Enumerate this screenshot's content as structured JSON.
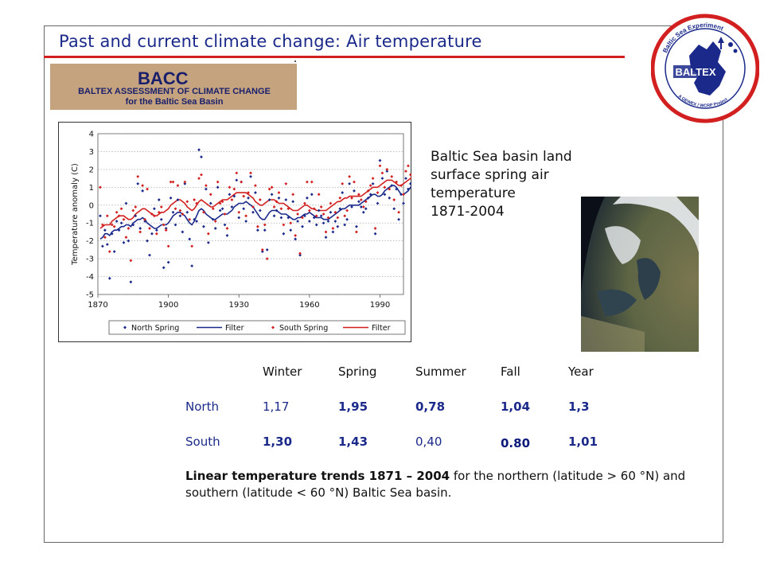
{
  "slide": {
    "title": "Past and current climate change: Air temperature",
    "description_lines": [
      "Baltic Sea basin land",
      "surface spring air",
      "temperature",
      "1871-2004"
    ]
  },
  "bacc_logo": {
    "name": "BACC",
    "line1": "BALTEX ASSESSMENT OF CLIMATE CHANGE",
    "line2": "for the Baltic Sea Basin"
  },
  "baltex_logo": {
    "ring_top": "Baltic Sea Experiment",
    "ring_bottom": "A GEWEX / WCRP Project",
    "center": "BALTEX",
    "sub": "GEWEX"
  },
  "colors": {
    "title": "#1b2a8a",
    "rule": "#d21f1f",
    "north_series": "#1b2a8a",
    "south_series": "#d21f1f",
    "bacc_bg": "#c4a37e"
  },
  "chart_data": {
    "type": "scatter",
    "ylabel": "Temperature anomaly (C)",
    "xlabel": "",
    "xlim": [
      1870,
      2000
    ],
    "ylim": [
      -5,
      4
    ],
    "x_ticks": [
      "1870",
      "1900",
      "1930",
      "1960",
      "1990"
    ],
    "y_ticks": [
      "-5",
      "-4",
      "-3",
      "-2",
      "-1",
      "0",
      "1",
      "2",
      "3",
      "4"
    ],
    "grid": "horizontal dotted",
    "legend": "bottom",
    "legend_labels": [
      "North Spring",
      "Filter",
      "South Spring",
      "Filter"
    ],
    "x": [
      1871,
      1872,
      1873,
      1874,
      1875,
      1876,
      1877,
      1878,
      1879,
      1880,
      1881,
      1882,
      1883,
      1884,
      1885,
      1886,
      1887,
      1888,
      1889,
      1890,
      1891,
      1892,
      1893,
      1894,
      1895,
      1896,
      1897,
      1898,
      1899,
      1900,
      1901,
      1902,
      1903,
      1904,
      1905,
      1906,
      1907,
      1908,
      1909,
      1910,
      1911,
      1912,
      1913,
      1914,
      1915,
      1916,
      1917,
      1918,
      1919,
      1920,
      1921,
      1922,
      1923,
      1924,
      1925,
      1926,
      1927,
      1928,
      1929,
      1930,
      1931,
      1932,
      1933,
      1934,
      1935,
      1936,
      1937,
      1938,
      1939,
      1940,
      1941,
      1942,
      1943,
      1944,
      1945,
      1946,
      1947,
      1948,
      1949,
      1950,
      1951,
      1952,
      1953,
      1954,
      1955,
      1956,
      1957,
      1958,
      1959,
      1960,
      1961,
      1962,
      1963,
      1964,
      1965,
      1966,
      1967,
      1968,
      1969,
      1970,
      1971,
      1972,
      1973,
      1974,
      1975,
      1976,
      1977,
      1978,
      1979,
      1980,
      1981,
      1982,
      1983,
      1984,
      1985,
      1986,
      1987,
      1988,
      1989,
      1990,
      1991,
      1992,
      1993,
      1994,
      1995,
      1996,
      1997,
      1998,
      1999,
      2000,
      2001,
      2002,
      2003,
      2004
    ],
    "series": [
      {
        "name": "North Spring",
        "marker": "diamond",
        "values": [
          -0.6,
          -2.3,
          -1.4,
          -2.2,
          -4.1,
          -1.6,
          -2.6,
          -0.9,
          -1.4,
          -1.0,
          -2.1,
          0.1,
          -2.0,
          -4.3,
          -1.1,
          -0.6,
          1.2,
          -1.3,
          0.8,
          -0.9,
          -2.0,
          -2.8,
          -1.6,
          -0.2,
          -1.4,
          0.3,
          -0.8,
          -3.5,
          -1.3,
          -3.2,
          0.4,
          -0.4,
          -1.1,
          0.3,
          -0.6,
          -1.5,
          1.2,
          -0.4,
          -1.9,
          -3.4,
          -0.8,
          -0.9,
          3.1,
          2.7,
          -1.2,
          0.9,
          -2.1,
          0.1,
          -0.8,
          -1.3,
          1.0,
          -0.3,
          -0.2,
          -1.1,
          -1.7,
          0.6,
          -0.1,
          0.5,
          1.4,
          -0.7,
          1.3,
          -0.2,
          -0.9,
          0.4,
          1.6,
          -0.4,
          0.7,
          -1.4,
          -0.3,
          -2.6,
          -1.4,
          -2.5,
          0.3,
          0.6,
          -0.6,
          -0.3,
          0.4,
          -0.7,
          -1.6,
          0.3,
          -0.7,
          -1.4,
          0.2,
          -1.9,
          -0.9,
          -2.8,
          -1.2,
          -0.6,
          0.4,
          -0.9,
          0.6,
          -0.7,
          -1.1,
          -0.3,
          -0.6,
          -1.0,
          -1.8,
          -0.9,
          -0.4,
          -1.5,
          -0.9,
          -1.2,
          -0.2,
          0.7,
          -1.1,
          -0.8,
          1.2,
          -0.1,
          0.8,
          -1.2,
          0.2,
          -0.1,
          -0.4,
          -0.2,
          0.4,
          0.6,
          1.2,
          -1.6,
          0.1,
          2.5,
          1.5,
          0.6,
          1.9,
          0.4,
          1.1,
          -0.2,
          0.9,
          -0.8,
          0.6,
          0.1,
          1.5,
          0.9,
          1.2,
          1.7
        ]
      },
      {
        "name": "South Spring",
        "marker": "diamond",
        "values": [
          1.0,
          -1.1,
          -1.8,
          -0.6,
          -2.6,
          -1.1,
          -1.2,
          -0.4,
          -0.6,
          -0.2,
          -0.8,
          -1.8,
          -1.3,
          -3.1,
          -0.3,
          -0.1,
          1.6,
          -1.5,
          1.1,
          -0.8,
          0.9,
          -1.3,
          -0.5,
          -0.6,
          -1.6,
          -0.4,
          -0.1,
          -1.1,
          -1.4,
          -2.3,
          1.3,
          1.3,
          -0.2,
          1.1,
          -0.3,
          -0.5,
          1.3,
          0.2,
          -0.8,
          -2.3,
          0.3,
          0.1,
          1.5,
          1.7,
          -0.4,
          1.1,
          -1.6,
          0.6,
          -0.2,
          -0.9,
          1.3,
          0.1,
          0.2,
          -0.5,
          -1.3,
          1.0,
          0.3,
          0.9,
          1.8,
          -0.4,
          1.3,
          0.5,
          -0.6,
          0.7,
          1.8,
          -0.1,
          1.1,
          -1.2,
          0.3,
          -2.5,
          -1.1,
          -3.0,
          0.9,
          1.0,
          -0.1,
          0.2,
          0.7,
          -0.2,
          -1.1,
          1.2,
          -0.2,
          -1.0,
          0.6,
          -1.7,
          -0.5,
          -2.7,
          -0.7,
          0.1,
          1.3,
          -0.3,
          1.3,
          -0.2,
          -0.6,
          0.6,
          -0.1,
          -0.5,
          -1.5,
          -0.7,
          0.1,
          -1.3,
          -0.4,
          -0.7,
          0.4,
          1.2,
          -0.6,
          -0.3,
          1.6,
          0.4,
          1.3,
          -1.5,
          0.6,
          0.3,
          -0.1,
          0.2,
          0.8,
          1.1,
          1.5,
          -1.3,
          0.7,
          2.2,
          1.8,
          1.0,
          2.0,
          0.9,
          1.6,
          0.3,
          1.3,
          -0.4,
          1.1,
          0.6,
          1.9,
          2.2,
          1.7,
          2.2
        ]
      },
      {
        "name": "Filter",
        "of": "North Spring",
        "values": [
          -1.9,
          -1.8,
          -1.6,
          -1.6,
          -1.7,
          -1.5,
          -1.4,
          -1.4,
          -1.3,
          -1.2,
          -1.2,
          -1.1,
          -1.1,
          -1.2,
          -1.0,
          -0.9,
          -0.8,
          -0.8,
          -0.7,
          -0.8,
          -1.0,
          -1.1,
          -1.2,
          -1.3,
          -1.3,
          -1.2,
          -1.1,
          -1.1,
          -1.1,
          -1.0,
          -0.8,
          -0.6,
          -0.5,
          -0.4,
          -0.4,
          -0.5,
          -0.6,
          -0.8,
          -1.0,
          -1.1,
          -0.9,
          -0.6,
          -0.3,
          -0.2,
          -0.3,
          -0.5,
          -0.6,
          -0.7,
          -0.8,
          -0.8,
          -0.7,
          -0.6,
          -0.5,
          -0.5,
          -0.5,
          -0.4,
          -0.3,
          -0.1,
          0.0,
          0.1,
          0.1,
          0.1,
          0.2,
          0.1,
          0.0,
          -0.1,
          -0.3,
          -0.5,
          -0.7,
          -0.8,
          -0.8,
          -0.6,
          -0.4,
          -0.3,
          -0.3,
          -0.3,
          -0.4,
          -0.5,
          -0.5,
          -0.5,
          -0.6,
          -0.7,
          -0.8,
          -0.8,
          -0.7,
          -0.7,
          -0.6,
          -0.5,
          -0.5,
          -0.4,
          -0.5,
          -0.6,
          -0.7,
          -0.7,
          -0.7,
          -0.8,
          -0.8,
          -0.8,
          -0.7,
          -0.6,
          -0.5,
          -0.4,
          -0.3,
          -0.2,
          -0.2,
          -0.1,
          0.0,
          0.0,
          0.0,
          0.0,
          0.0,
          0.1,
          0.2,
          0.3,
          0.4,
          0.5,
          0.6,
          0.6,
          0.5,
          0.5,
          0.6,
          0.8,
          0.9,
          1.0,
          1.1,
          1.1,
          1.0,
          0.8,
          0.6,
          0.6,
          0.7,
          0.8,
          1.0,
          1.1
        ]
      },
      {
        "name": "Filter",
        "of": "South Spring",
        "values": [
          -1.3,
          -1.2,
          -1.1,
          -1.1,
          -1.1,
          -0.9,
          -0.8,
          -0.7,
          -0.6,
          -0.6,
          -0.6,
          -0.7,
          -0.8,
          -0.8,
          -0.7,
          -0.5,
          -0.4,
          -0.3,
          -0.2,
          -0.2,
          -0.3,
          -0.4,
          -0.5,
          -0.6,
          -0.6,
          -0.5,
          -0.4,
          -0.4,
          -0.3,
          -0.2,
          0.0,
          0.1,
          0.2,
          0.3,
          0.3,
          0.2,
          0.1,
          -0.1,
          -0.2,
          -0.3,
          -0.2,
          0.0,
          0.2,
          0.3,
          0.2,
          0.1,
          0.0,
          -0.1,
          -0.1,
          0.0,
          0.1,
          0.2,
          0.3,
          0.3,
          0.3,
          0.4,
          0.5,
          0.6,
          0.7,
          0.7,
          0.7,
          0.7,
          0.7,
          0.6,
          0.5,
          0.4,
          0.2,
          0.1,
          0.0,
          0.0,
          0.1,
          0.2,
          0.3,
          0.3,
          0.3,
          0.2,
          0.1,
          0.1,
          0.1,
          0.0,
          -0.1,
          -0.2,
          -0.3,
          -0.3,
          -0.3,
          -0.2,
          -0.1,
          0.0,
          0.0,
          -0.1,
          -0.2,
          -0.2,
          -0.3,
          -0.3,
          -0.3,
          -0.3,
          -0.3,
          -0.2,
          -0.1,
          0.0,
          0.1,
          0.2,
          0.2,
          0.3,
          0.4,
          0.4,
          0.5,
          0.5,
          0.5,
          0.5,
          0.5,
          0.5,
          0.6,
          0.7,
          0.8,
          0.9,
          1.0,
          1.0,
          1.0,
          1.1,
          1.2,
          1.3,
          1.4,
          1.4,
          1.4,
          1.3,
          1.2,
          1.1,
          1.1,
          1.2,
          1.3,
          1.4,
          1.5,
          1.6
        ]
      }
    ]
  },
  "trend_table": {
    "columns": [
      "Winter",
      "Spring",
      "Summer",
      "Fall",
      "Year"
    ],
    "rows": [
      {
        "label": "North",
        "values": [
          "1,17",
          "1,95",
          "0,78",
          "1,04",
          "1,3"
        ]
      },
      {
        "label": "South",
        "values": [
          "1,30",
          "1,43",
          "0,40",
          "0.80",
          "1,01"
        ]
      }
    ]
  },
  "caption": {
    "bold": "Linear temperature trends 1871 – 2004",
    "rest": " for the northern (latitude > 60 °N) and southern (latitude < 60 °N) Baltic Sea basin."
  }
}
